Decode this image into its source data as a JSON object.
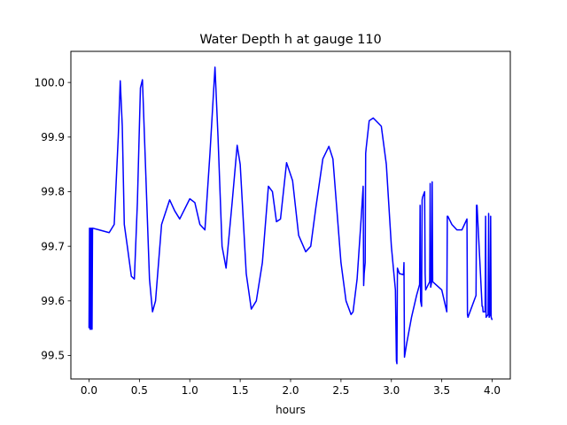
{
  "chart_data": {
    "type": "line",
    "title": "Water Depth h at gauge 110",
    "xlabel": "hours",
    "ylabel": "",
    "xlim": [
      -0.18,
      4.18
    ],
    "ylim": [
      99.457,
      100.057
    ],
    "xticks": [
      0.0,
      0.5,
      1.0,
      1.5,
      2.0,
      2.5,
      3.0,
      3.5,
      4.0
    ],
    "xtick_labels": [
      "0.0",
      "0.5",
      "1.0",
      "1.5",
      "2.0",
      "2.5",
      "3.0",
      "3.5",
      "4.0"
    ],
    "yticks": [
      99.5,
      99.6,
      99.7,
      99.8,
      99.9,
      100.0
    ],
    "ytick_labels": [
      "99.5",
      "99.6",
      "99.7",
      "99.8",
      "99.9",
      "100.0"
    ],
    "grid": false,
    "line_color": "#0000ff",
    "series": [
      {
        "x": [
          0.0,
          0.005,
          0.01,
          0.015,
          0.02,
          0.025,
          0.03,
          0.035,
          0.04,
          0.1,
          0.2,
          0.25,
          0.29,
          0.31,
          0.33,
          0.35,
          0.38,
          0.42,
          0.45,
          0.48,
          0.51,
          0.53,
          0.56,
          0.6,
          0.63,
          0.66,
          0.72,
          0.8,
          0.85,
          0.9,
          1.0,
          1.05,
          1.1,
          1.15,
          1.2,
          1.25,
          1.28,
          1.32,
          1.36,
          1.42,
          1.47,
          1.5,
          1.56,
          1.61,
          1.66,
          1.72,
          1.78,
          1.82,
          1.86,
          1.9,
          1.96,
          2.02,
          2.08,
          2.15,
          2.2,
          2.25,
          2.32,
          2.38,
          2.42,
          2.5,
          2.55,
          2.6,
          2.62,
          2.66,
          2.7,
          2.72,
          2.725,
          2.73,
          2.74,
          2.745,
          2.75,
          2.78,
          2.82,
          2.9,
          2.95,
          3.0,
          3.04,
          3.05,
          3.055,
          3.06,
          3.08,
          3.12,
          3.125,
          3.13,
          3.15,
          3.2,
          3.25,
          3.28,
          3.285,
          3.29,
          3.3,
          3.305,
          3.31,
          3.33,
          3.335,
          3.34,
          3.38,
          3.385,
          3.39,
          3.4,
          3.405,
          3.41,
          3.5,
          3.55,
          3.555,
          3.56,
          3.6,
          3.65,
          3.7,
          3.75,
          3.755,
          3.76,
          3.84,
          3.845,
          3.85,
          3.9,
          3.905,
          3.91,
          3.93,
          3.935,
          3.94,
          3.96,
          3.965,
          3.97,
          3.98,
          3.985,
          3.99,
          4.0
        ],
        "y": [
          99.55,
          99.733,
          99.548,
          99.733,
          99.548,
          99.733,
          99.548,
          99.733,
          99.733,
          99.73,
          99.725,
          99.74,
          99.9,
          100.003,
          99.92,
          99.74,
          99.7,
          99.645,
          99.64,
          99.78,
          99.99,
          100.005,
          99.85,
          99.64,
          99.58,
          99.6,
          99.74,
          99.785,
          99.765,
          99.75,
          99.787,
          99.78,
          99.74,
          99.73,
          99.87,
          100.028,
          99.9,
          99.7,
          99.66,
          99.78,
          99.885,
          99.85,
          99.65,
          99.585,
          99.6,
          99.67,
          99.81,
          99.8,
          99.745,
          99.75,
          99.853,
          99.82,
          99.72,
          99.69,
          99.7,
          99.77,
          99.86,
          99.883,
          99.86,
          99.67,
          99.6,
          99.575,
          99.58,
          99.64,
          99.75,
          99.81,
          99.628,
          99.65,
          99.67,
          99.87,
          99.88,
          99.93,
          99.935,
          99.92,
          99.85,
          99.7,
          99.62,
          99.49,
          99.485,
          99.66,
          99.65,
          99.648,
          99.67,
          99.497,
          99.52,
          99.57,
          99.61,
          99.63,
          99.775,
          99.6,
          99.59,
          99.785,
          99.79,
          99.8,
          99.65,
          99.62,
          99.635,
          99.815,
          99.625,
          99.635,
          99.818,
          99.635,
          99.62,
          99.58,
          99.755,
          99.755,
          99.74,
          99.73,
          99.73,
          99.75,
          99.575,
          99.57,
          99.61,
          99.775,
          99.775,
          99.59,
          99.59,
          99.58,
          99.58,
          99.755,
          99.57,
          99.575,
          99.76,
          99.57,
          99.575,
          99.755,
          99.57,
          99.565
        ]
      }
    ]
  }
}
